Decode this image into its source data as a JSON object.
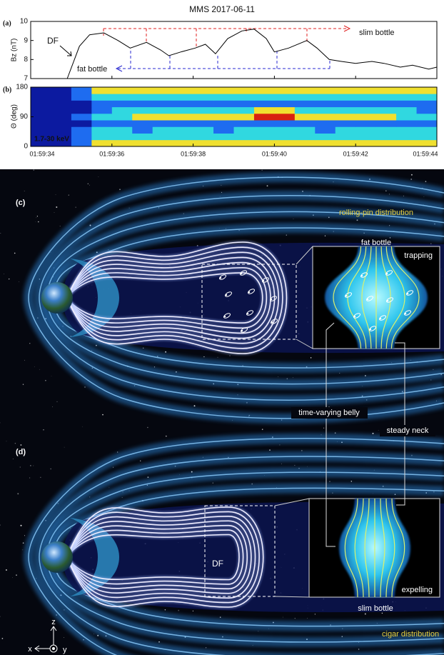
{
  "chart_data": [
    {
      "type": "line",
      "title": "MMS 2017-06-11",
      "panel_label": "(a)",
      "y_label": "Bz (nT)",
      "x": [
        34.9,
        35.2,
        35.45,
        35.8,
        36.15,
        36.45,
        36.85,
        37.2,
        37.4,
        37.7,
        38.05,
        38.3,
        38.55,
        38.85,
        39.2,
        39.5,
        39.8,
        40.0,
        40.35,
        40.8,
        41.05,
        41.35,
        41.65,
        42.0,
        42.4,
        42.7,
        43.1,
        43.4,
        43.8,
        44.0
      ],
      "values": [
        7.0,
        8.7,
        9.3,
        9.4,
        9.0,
        8.6,
        8.9,
        8.5,
        8.2,
        8.4,
        8.6,
        8.8,
        8.3,
        9.1,
        9.5,
        9.6,
        9.1,
        8.4,
        8.6,
        9.0,
        8.6,
        8.0,
        7.9,
        7.8,
        7.9,
        7.8,
        7.6,
        7.7,
        7.5,
        7.6
      ],
      "color": "#000000",
      "xlim": [
        34,
        44
      ],
      "xticks": [
        34,
        36,
        38,
        40,
        42,
        44
      ],
      "ylim": [
        7,
        10
      ],
      "yticks": [
        7,
        8,
        9,
        10
      ],
      "annotations": [
        {
          "text": "DF"
        },
        {
          "text": "slim bottle",
          "color": "#e02020"
        },
        {
          "text": "fat bottle",
          "color": "#2a2ad0"
        }
      ]
    },
    {
      "type": "heatmap",
      "panel_label": "(b)",
      "y_label": "Θ (deg)",
      "annotation": "1.7-30 keV",
      "x_bins": [
        34,
        34.5,
        35,
        35.5,
        36,
        36.5,
        37,
        37.5,
        38,
        38.5,
        39,
        39.5,
        40,
        40.5,
        41,
        41.5,
        42,
        42.5,
        43,
        43.5,
        44
      ],
      "y_bins": [
        0,
        20,
        40,
        60,
        80,
        100,
        120,
        140,
        160,
        180
      ],
      "z": [
        [
          0,
          0,
          1,
          3,
          3,
          3,
          3,
          3,
          3,
          3,
          3,
          3,
          3,
          3,
          3,
          3,
          3,
          3,
          3,
          3
        ],
        [
          0,
          0,
          1,
          2,
          2,
          2,
          2,
          2,
          2,
          2,
          2,
          2,
          2,
          2,
          2,
          2,
          2,
          2,
          2,
          2
        ],
        [
          0,
          0,
          1,
          2,
          2,
          1,
          2,
          2,
          2,
          1,
          2,
          2,
          2,
          2,
          1,
          2,
          2,
          2,
          2,
          2
        ],
        [
          0,
          0,
          0,
          1,
          1,
          1,
          1,
          1,
          1,
          1,
          1,
          1,
          1,
          1,
          1,
          1,
          1,
          1,
          1,
          1
        ],
        [
          0,
          0,
          1,
          2,
          2,
          3,
          3,
          3,
          3,
          3,
          3,
          4,
          4,
          3,
          3,
          3,
          3,
          3,
          2,
          2
        ],
        [
          0,
          0,
          0,
          1,
          2,
          2,
          2,
          2,
          2,
          2,
          2,
          3,
          3,
          2,
          2,
          2,
          2,
          2,
          2,
          1
        ],
        [
          0,
          0,
          0,
          1,
          1,
          1,
          1,
          1,
          1,
          1,
          1,
          1,
          1,
          1,
          1,
          1,
          1,
          1,
          1,
          1
        ],
        [
          0,
          0,
          1,
          2,
          2,
          2,
          2,
          2,
          2,
          2,
          2,
          2,
          2,
          2,
          2,
          2,
          2,
          2,
          2,
          2
        ],
        [
          0,
          0,
          1,
          3,
          3,
          3,
          3,
          3,
          3,
          3,
          3,
          3,
          3,
          3,
          3,
          3,
          3,
          3,
          3,
          3
        ]
      ],
      "colors": [
        "#0c1aa0",
        "#1e6cf0",
        "#30d8e0",
        "#f0e030",
        "#d82010"
      ],
      "xlim": [
        34,
        44
      ],
      "xticks": [
        {
          "value": 34,
          "label": "01:59:34"
        },
        {
          "value": 36,
          "label": "01:59:36"
        },
        {
          "value": 38,
          "label": "01:59:38"
        },
        {
          "value": 40,
          "label": "01:59:40"
        },
        {
          "value": 42,
          "label": "01:59:42"
        },
        {
          "value": 44,
          "label": "01:59:44"
        }
      ],
      "ylim": [
        0,
        180
      ],
      "yticks": [
        0,
        90,
        180
      ]
    }
  ],
  "illustration": {
    "panels": [
      {
        "label": "(c)",
        "distribution": "rolling-pin distribution",
        "bottle": "fat bottle",
        "inset": "trapping"
      },
      {
        "label": "(d)",
        "front": "DF",
        "bottle": "slim bottle",
        "inset": "expelling",
        "distribution": "cigar distribution"
      }
    ],
    "belly": "time-varying belly",
    "neck": "steady neck",
    "axes": {
      "z": "z",
      "x": "x",
      "y": "y"
    }
  }
}
